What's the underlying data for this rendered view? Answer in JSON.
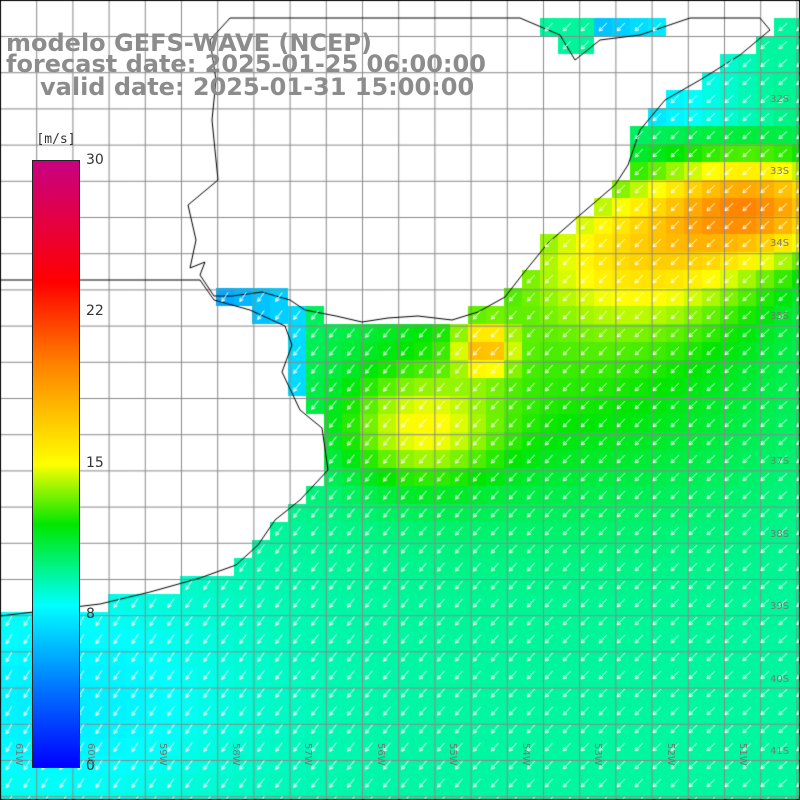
{
  "title": {
    "model": "modelo GEFS-WAVE (NCEP)",
    "forecast": "forecast date: 2025-01-25 06:00:00",
    "valid": "valid date: 2025-01-31 15:00:00"
  },
  "colorbar": {
    "unit": "[m/s]",
    "ticks": [
      "30",
      "22",
      "15",
      "8",
      "0"
    ],
    "range": [
      0,
      30
    ]
  },
  "lat_labels": [
    "32S",
    "33S",
    "34S",
    "35S",
    "37S",
    "38S",
    "39S",
    "40S",
    "41S"
  ],
  "lon_labels": [
    "61W",
    "60W",
    "59W",
    "58W",
    "57W",
    "56W",
    "55W",
    "54W",
    "53W",
    "52W",
    "51W"
  ],
  "colors": {
    "land": "#ffffff",
    "coast": "#000000",
    "grid": "#8a8a8a"
  },
  "wind_field": {
    "description_units": "m/s",
    "arrow_direction": "from northeast to southwest",
    "max_speed_region": "offshore east near 33S-34S around 20 m/s",
    "min_speed_region": "inside Rio de la Plata estuary around 5 m/s"
  }
}
